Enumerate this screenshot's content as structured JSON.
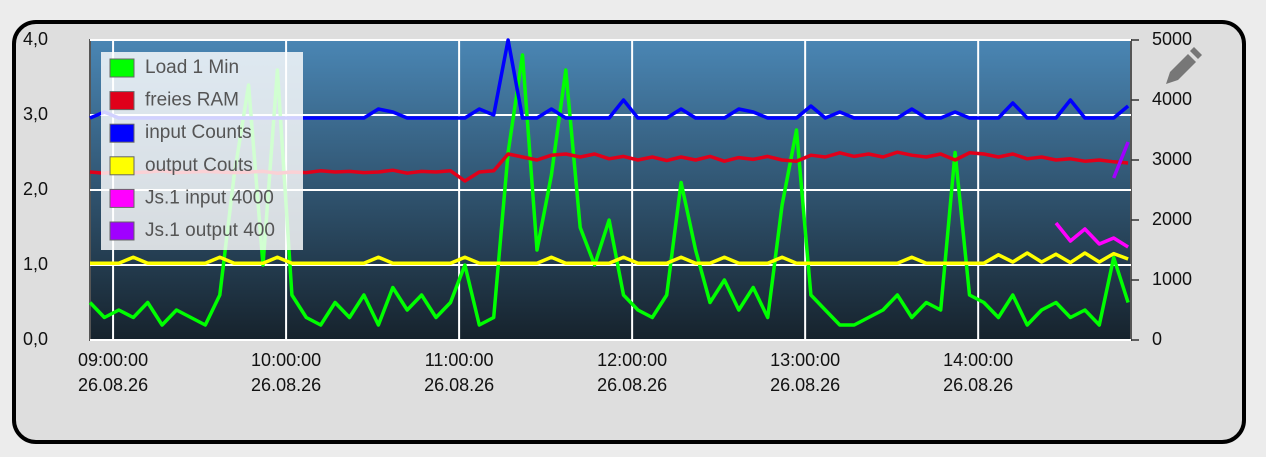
{
  "chart_data": {
    "type": "line",
    "x": [
      "26.08.26 08:52:00",
      "26.08.26 08:57:00",
      "26.08.26 09:02:00",
      "26.08.26 09:07:00",
      "26.08.26 09:12:00",
      "26.08.26 09:17:00",
      "26.08.26 09:22:00",
      "26.08.26 09:27:00",
      "26.08.26 09:32:00",
      "26.08.26 09:37:00",
      "26.08.26 09:42:00",
      "26.08.26 09:47:00",
      "26.08.26 09:52:00",
      "26.08.26 09:57:00",
      "26.08.26 10:02:00",
      "26.08.26 10:07:00",
      "26.08.26 10:12:00",
      "26.08.26 10:17:00",
      "26.08.26 10:22:00",
      "26.08.26 10:27:00",
      "26.08.26 10:32:00",
      "26.08.26 10:37:00",
      "26.08.26 10:42:00",
      "26.08.26 10:47:00",
      "26.08.26 10:52:00",
      "26.08.26 10:57:00",
      "26.08.26 11:02:00",
      "26.08.26 11:07:00",
      "26.08.26 11:12:00",
      "26.08.26 11:17:00",
      "26.08.26 11:22:00",
      "26.08.26 11:27:00",
      "26.08.26 11:32:00",
      "26.08.26 11:37:00",
      "26.08.26 11:42:00",
      "26.08.26 11:47:00",
      "26.08.26 11:52:00",
      "26.08.26 11:57:00",
      "26.08.26 12:02:00",
      "26.08.26 12:07:00",
      "26.08.26 12:12:00",
      "26.08.26 12:17:00",
      "26.08.26 12:22:00",
      "26.08.26 12:27:00",
      "26.08.26 12:32:00",
      "26.08.26 12:37:00",
      "26.08.26 12:42:00",
      "26.08.26 12:47:00",
      "26.08.26 12:52:00",
      "26.08.26 12:57:00",
      "26.08.26 13:02:00",
      "26.08.26 13:07:00",
      "26.08.26 13:12:00",
      "26.08.26 13:17:00",
      "26.08.26 13:22:00",
      "26.08.26 13:27:00",
      "26.08.26 13:32:00",
      "26.08.26 13:37:00",
      "26.08.26 13:42:00",
      "26.08.26 13:47:00",
      "26.08.26 13:52:00",
      "26.08.26 13:57:00",
      "26.08.26 14:02:00",
      "26.08.26 14:07:00",
      "26.08.26 14:12:00",
      "26.08.26 14:17:00",
      "26.08.26 14:22:00",
      "26.08.26 14:27:00",
      "26.08.26 14:32:00",
      "26.08.26 14:37:00",
      "26.08.26 14:42:00",
      "26.08.26 14:47:00",
      "26.08.26 14:52:00"
    ],
    "xlim": [
      "26.08.26 08:52:00",
      "26.08.26 14:53:00"
    ],
    "xticks": [
      {
        "value": "26.08.26 09:00:00",
        "label": [
          "09:00:00",
          "26.08.26"
        ]
      },
      {
        "value": "26.08.26 10:00:00",
        "label": [
          "10:00:00",
          "26.08.26"
        ]
      },
      {
        "value": "26.08.26 11:00:00",
        "label": [
          "11:00:00",
          "26.08.26"
        ]
      },
      {
        "value": "26.08.26 12:00:00",
        "label": [
          "12:00:00",
          "26.08.26"
        ]
      },
      {
        "value": "26.08.26 13:00:00",
        "label": [
          "13:00:00",
          "26.08.26"
        ]
      },
      {
        "value": "26.08.26 14:00:00",
        "label": [
          "14:00:00",
          "26.08.26"
        ]
      }
    ],
    "ylim": [
      0,
      4
    ],
    "yticks": [
      {
        "value": 0,
        "label": "0,0"
      },
      {
        "value": 1,
        "label": "1,0"
      },
      {
        "value": 2,
        "label": "2,0"
      },
      {
        "value": 3,
        "label": "3,0"
      },
      {
        "value": 4,
        "label": "4,0"
      }
    ],
    "y2lim": [
      0,
      5000
    ],
    "y2ticks": [
      0,
      1000,
      2000,
      3000,
      4000,
      5000
    ],
    "grid": true,
    "legend": "top-left",
    "series": [
      {
        "name": "Load 1 Min",
        "color": "#00ff00",
        "values": [
          0.5,
          0.3,
          0.4,
          0.3,
          0.5,
          0.2,
          0.4,
          0.3,
          0.2,
          0.6,
          2.2,
          3.4,
          1.0,
          3.6,
          0.6,
          0.3,
          0.2,
          0.5,
          0.3,
          0.6,
          0.2,
          0.7,
          0.4,
          0.6,
          0.3,
          0.5,
          1.0,
          0.2,
          0.3,
          2.5,
          3.8,
          1.2,
          2.2,
          3.6,
          1.5,
          1.0,
          1.6,
          0.6,
          0.4,
          0.3,
          0.6,
          2.1,
          1.2,
          0.5,
          0.8,
          0.4,
          0.7,
          0.3,
          1.8,
          2.8,
          0.6,
          0.4,
          0.2,
          0.2,
          0.3,
          0.4,
          0.6,
          0.3,
          0.5,
          0.4,
          2.5,
          0.6,
          0.5,
          0.3,
          0.6,
          0.2,
          0.4,
          0.5,
          0.3,
          0.4,
          0.2,
          1.1,
          0.5
        ]
      },
      {
        "name": "freies RAM",
        "color": "#e0001a",
        "axis": "y2",
        "values": [
          2800,
          2780,
          2810,
          2790,
          2800,
          2820,
          2790,
          2800,
          2810,
          2800,
          2790,
          2800,
          2810,
          2780,
          2800,
          2790,
          2820,
          2800,
          2810,
          2790,
          2800,
          2830,
          2780,
          2810,
          2800,
          2820,
          2650,
          2800,
          2820,
          3100,
          3050,
          3000,
          3080,
          3100,
          3050,
          3100,
          3020,
          3060,
          3000,
          3050,
          2990,
          3050,
          3000,
          3060,
          2980,
          3040,
          3010,
          3060,
          3000,
          2980,
          3080,
          3050,
          3120,
          3060,
          3100,
          3050,
          3130,
          3080,
          3050,
          3100,
          3000,
          3120,
          3100,
          3050,
          3100,
          3020,
          3050,
          3000,
          3020,
          2980,
          3000,
          2970,
          2950
        ]
      },
      {
        "name": "input Counts",
        "color": "#0000ff",
        "axis": "y2",
        "values": [
          3700,
          3800,
          3700,
          3700,
          3700,
          3700,
          3700,
          3700,
          3700,
          3700,
          3700,
          3700,
          3700,
          3700,
          3700,
          3700,
          3700,
          3700,
          3700,
          3700,
          3850,
          3800,
          3700,
          3700,
          3700,
          3700,
          3700,
          3850,
          3750,
          5000,
          3700,
          3700,
          3850,
          3700,
          3700,
          3700,
          3700,
          4000,
          3700,
          3700,
          3700,
          3850,
          3700,
          3700,
          3700,
          3850,
          3800,
          3700,
          3700,
          3700,
          3900,
          3700,
          3800,
          3700,
          3700,
          3700,
          3700,
          3850,
          3700,
          3700,
          3800,
          3700,
          3700,
          3700,
          3950,
          3700,
          3700,
          3700,
          4000,
          3700,
          3700,
          3700,
          3900
        ]
      },
      {
        "name": "output Couts",
        "color": "#ffff00",
        "axis": "y2",
        "values": [
          1280,
          1280,
          1280,
          1380,
          1280,
          1280,
          1280,
          1280,
          1280,
          1380,
          1280,
          1280,
          1280,
          1380,
          1280,
          1280,
          1280,
          1280,
          1280,
          1280,
          1380,
          1280,
          1280,
          1280,
          1280,
          1280,
          1380,
          1280,
          1280,
          1280,
          1280,
          1280,
          1380,
          1280,
          1280,
          1280,
          1280,
          1380,
          1280,
          1280,
          1280,
          1380,
          1280,
          1280,
          1380,
          1280,
          1280,
          1280,
          1380,
          1280,
          1280,
          1280,
          1280,
          1280,
          1280,
          1280,
          1280,
          1380,
          1280,
          1280,
          1280,
          1280,
          1280,
          1420,
          1300,
          1450,
          1300,
          1430,
          1290,
          1450,
          1300,
          1440,
          1350
        ]
      },
      {
        "name": "Js.1 input 4000",
        "color": "#ff00ff",
        "axis": "y2",
        "values": [
          null,
          null,
          null,
          null,
          null,
          null,
          null,
          null,
          null,
          null,
          null,
          null,
          null,
          null,
          null,
          null,
          null,
          null,
          null,
          null,
          null,
          null,
          null,
          null,
          null,
          null,
          null,
          null,
          null,
          null,
          null,
          null,
          null,
          null,
          null,
          null,
          null,
          null,
          null,
          null,
          null,
          null,
          null,
          null,
          null,
          null,
          null,
          null,
          null,
          null,
          null,
          null,
          null,
          null,
          null,
          null,
          null,
          null,
          null,
          null,
          null,
          null,
          null,
          null,
          null,
          null,
          null,
          1950,
          1650,
          1850,
          1600,
          1700,
          1550
        ]
      },
      {
        "name": "Js.1 output 400",
        "color": "#a000ff",
        "axis": "y2",
        "values": [
          null,
          null,
          null,
          null,
          null,
          null,
          null,
          null,
          null,
          null,
          null,
          null,
          null,
          null,
          null,
          null,
          null,
          null,
          null,
          null,
          null,
          null,
          null,
          null,
          null,
          null,
          null,
          null,
          null,
          null,
          null,
          null,
          null,
          null,
          null,
          null,
          null,
          null,
          null,
          null,
          null,
          null,
          null,
          null,
          null,
          null,
          null,
          null,
          null,
          null,
          null,
          null,
          null,
          null,
          null,
          null,
          null,
          null,
          null,
          null,
          null,
          null,
          null,
          null,
          null,
          null,
          null,
          null,
          null,
          null,
          null,
          2700,
          3300
        ]
      }
    ]
  }
}
